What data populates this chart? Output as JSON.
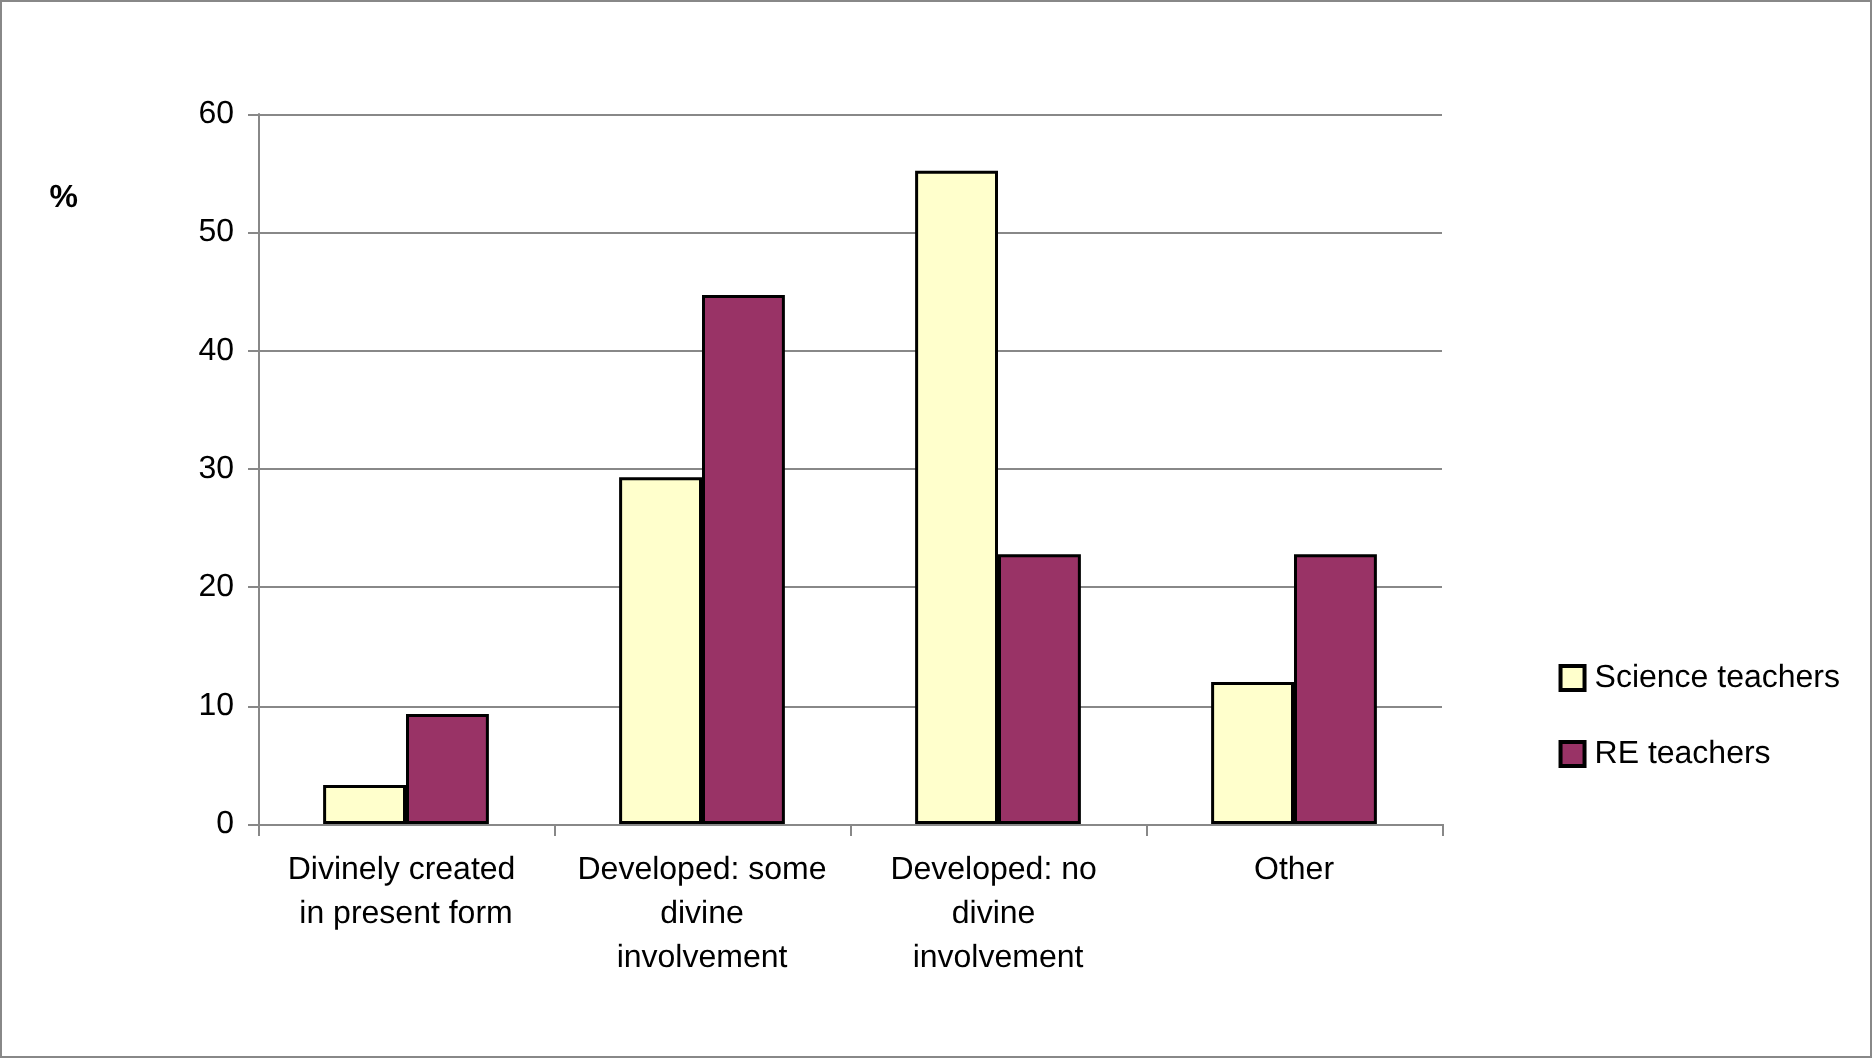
{
  "chart_data": {
    "type": "bar",
    "ylabel": "%",
    "categories": [
      "Divinely created in present form",
      "Developed: some divine involvement",
      "Developed: no divine involvement",
      "Other"
    ],
    "series": [
      {
        "name": "Science teachers",
        "color": "#ffffcc",
        "values": [
          3.3,
          29.3,
          55.2,
          12.0
        ]
      },
      {
        "name": "RE teachers",
        "color": "#993366",
        "values": [
          9.3,
          44.7,
          22.8,
          22.8
        ]
      }
    ],
    "ylim": [
      0,
      60
    ],
    "yticks": [
      0,
      10,
      20,
      30,
      40,
      50,
      60
    ],
    "grid": "y",
    "legend": "right"
  }
}
